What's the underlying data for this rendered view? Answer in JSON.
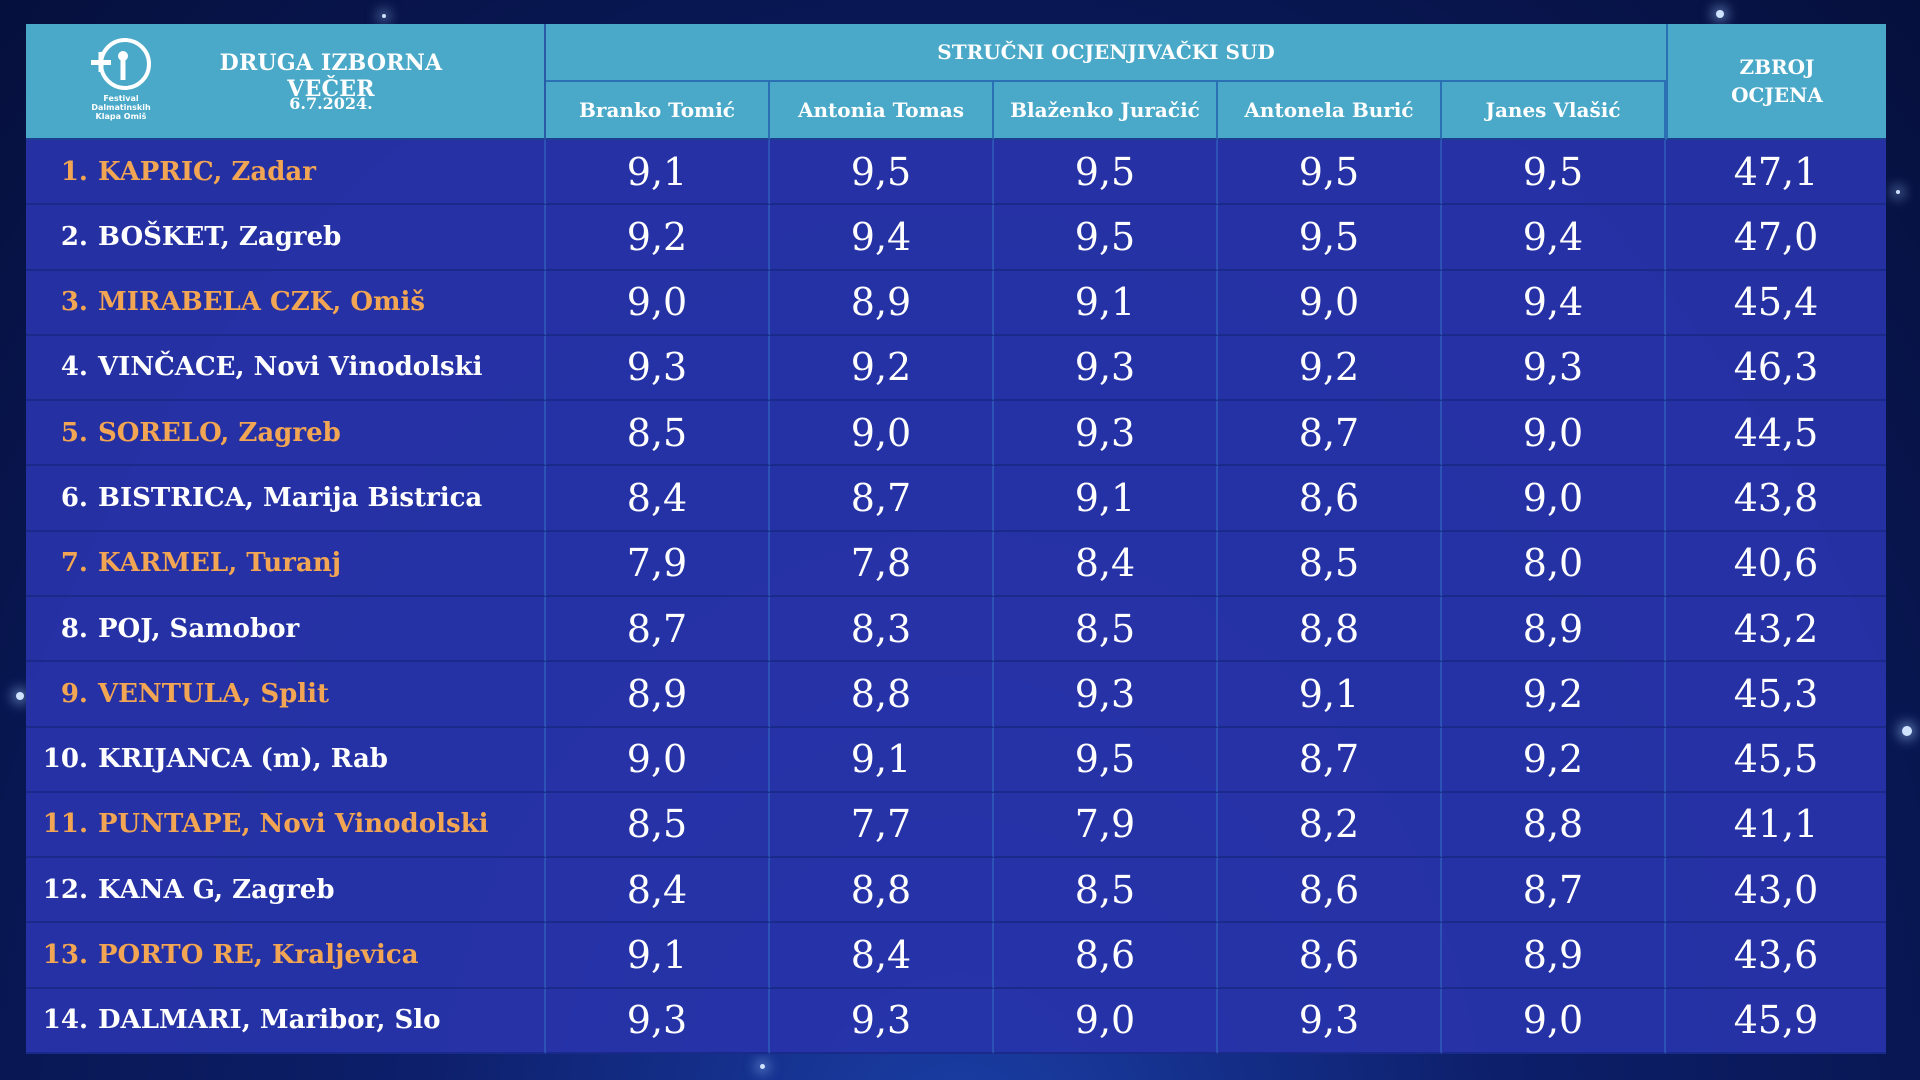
{
  "header": {
    "logo_text": "Festival Dalmatinskih Klapa Omiš",
    "title": "DRUGA IZBORNA VEČER",
    "date": "6.7.2024.",
    "panel_title": "STRUČNI OCJENJIVAČKI SUD",
    "total_line1": "ZBROJ",
    "total_line2": "OCJENA"
  },
  "judges": [
    "Branko Tomić",
    "Antonia Tomas",
    "Blaženko Juračić",
    "Antonela Burić",
    "Janes Vlašić"
  ],
  "colors": {
    "header_bg": "#4aa9c8",
    "row_bg": "#2834aa",
    "highlight_text": "#f2a552",
    "text": "#ffffff"
  },
  "rows": [
    {
      "rank": "1.",
      "name": "KAPRIC, Zadar",
      "highlight": true,
      "scores": [
        "9,1",
        "9,5",
        "9,5",
        "9,5",
        "9,5"
      ],
      "total": "47,1"
    },
    {
      "rank": "2.",
      "name": "BOŠKET, Zagreb",
      "highlight": false,
      "scores": [
        "9,2",
        "9,4",
        "9,5",
        "9,5",
        "9,4"
      ],
      "total": "47,0"
    },
    {
      "rank": "3.",
      "name": "MIRABELA CZK, Omiš",
      "highlight": true,
      "scores": [
        "9,0",
        "8,9",
        "9,1",
        "9,0",
        "9,4"
      ],
      "total": "45,4"
    },
    {
      "rank": "4.",
      "name": "VINČACE, Novi Vinodolski",
      "highlight": false,
      "scores": [
        "9,3",
        "9,2",
        "9,3",
        "9,2",
        "9,3"
      ],
      "total": "46,3"
    },
    {
      "rank": "5.",
      "name": "SORELO, Zagreb",
      "highlight": true,
      "scores": [
        "8,5",
        "9,0",
        "9,3",
        "8,7",
        "9,0"
      ],
      "total": "44,5"
    },
    {
      "rank": "6.",
      "name": "BISTRICA, Marija Bistrica",
      "highlight": false,
      "scores": [
        "8,4",
        "8,7",
        "9,1",
        "8,6",
        "9,0"
      ],
      "total": "43,8"
    },
    {
      "rank": "7.",
      "name": "KARMEL, Turanj",
      "highlight": true,
      "scores": [
        "7,9",
        "7,8",
        "8,4",
        "8,5",
        "8,0"
      ],
      "total": "40,6"
    },
    {
      "rank": "8.",
      "name": "POJ, Samobor",
      "highlight": false,
      "scores": [
        "8,7",
        "8,3",
        "8,5",
        "8,8",
        "8,9"
      ],
      "total": "43,2"
    },
    {
      "rank": "9.",
      "name": "VENTULA, Split",
      "highlight": true,
      "scores": [
        "8,9",
        "8,8",
        "9,3",
        "9,1",
        "9,2"
      ],
      "total": "45,3"
    },
    {
      "rank": "10.",
      "name": "KRIJANCA (m), Rab",
      "highlight": false,
      "scores": [
        "9,0",
        "9,1",
        "9,5",
        "8,7",
        "9,2"
      ],
      "total": "45,5"
    },
    {
      "rank": "11.",
      "name": "PUNTAPE, Novi Vinodolski",
      "highlight": true,
      "scores": [
        "8,5",
        "7,7",
        "7,9",
        "8,2",
        "8,8"
      ],
      "total": "41,1"
    },
    {
      "rank": "12.",
      "name": "KANA G, Zagreb",
      "highlight": false,
      "scores": [
        "8,4",
        "8,8",
        "8,5",
        "8,6",
        "8,7"
      ],
      "total": "43,0"
    },
    {
      "rank": "13.",
      "name": "PORTO RE, Kraljevica",
      "highlight": true,
      "scores": [
        "9,1",
        "8,4",
        "8,6",
        "8,6",
        "8,9"
      ],
      "total": "43,6"
    },
    {
      "rank": "14.",
      "name": "DALMARI, Maribor, Slo",
      "highlight": false,
      "scores": [
        "9,3",
        "9,3",
        "9,0",
        "9,3",
        "9,0"
      ],
      "total": "45,9"
    }
  ]
}
